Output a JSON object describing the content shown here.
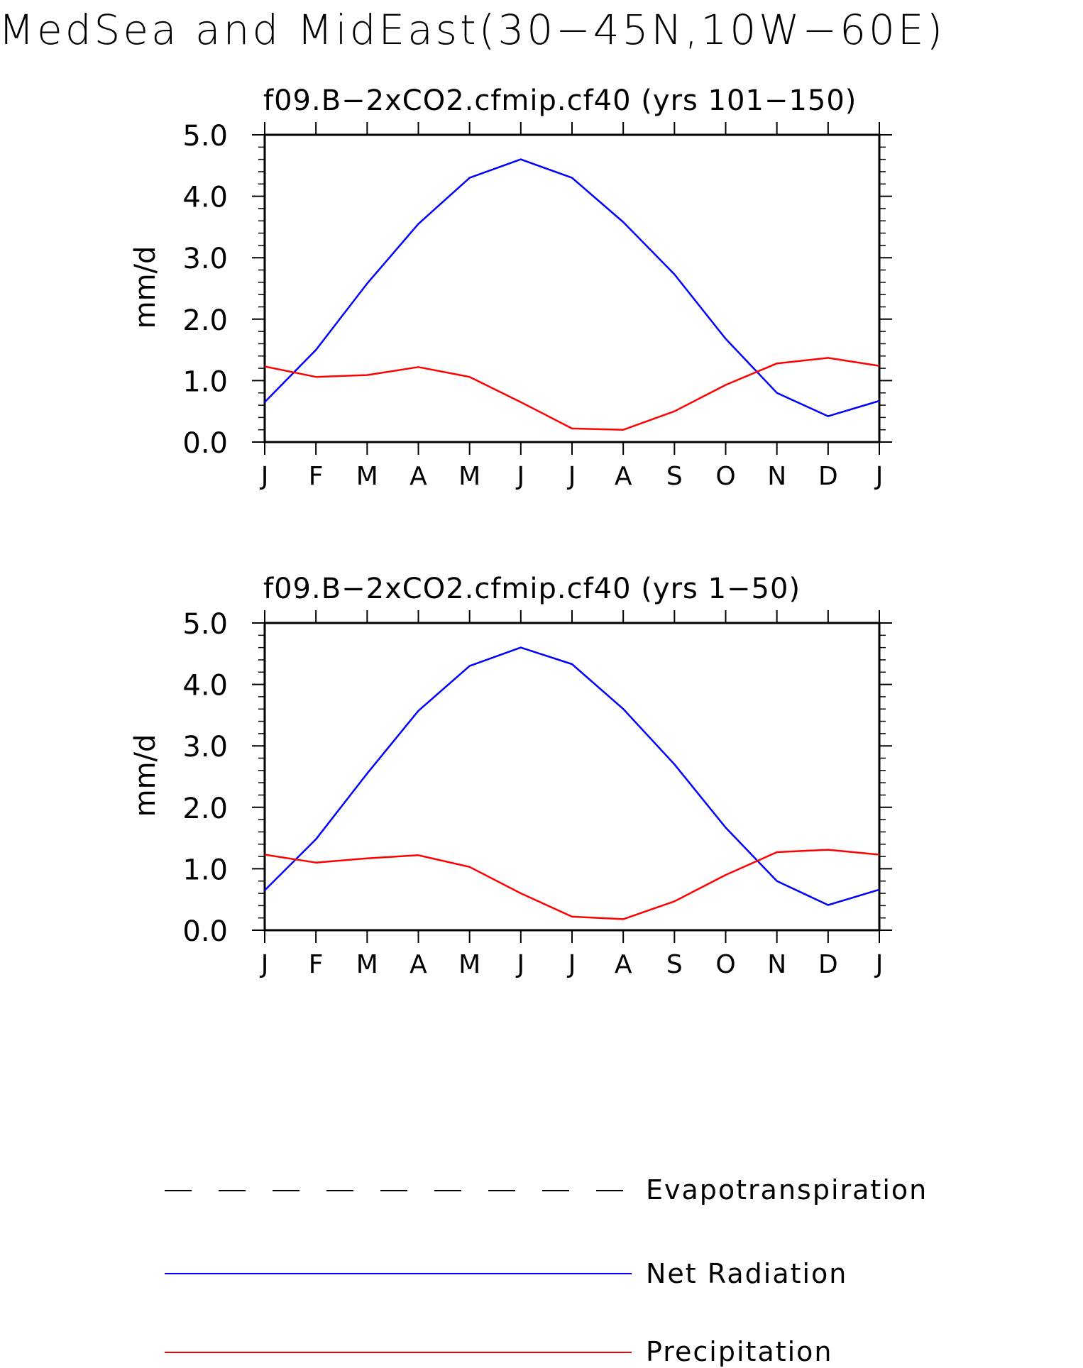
{
  "figure": {
    "title": "MedSea and MidEast(30−45N,10W−60E)"
  },
  "colors": {
    "net_radiation": "#0000ff",
    "precipitation": "#ff0000",
    "evapotranspiration": "#000000",
    "axes": "#000000",
    "background": "#ffffff"
  },
  "legend": {
    "position": "bottom",
    "items": [
      {
        "label": "Evapotranspiration",
        "style": "dashed",
        "color": "#000000"
      },
      {
        "label": "Net Radiation",
        "style": "solid",
        "color": "#0000ff"
      },
      {
        "label": "Precipitation",
        "style": "solid",
        "color": "#ff0000"
      }
    ]
  },
  "chart_data": [
    {
      "type": "line",
      "title": "f09.B−2xCO2.cfmip.cf40 (yrs 101−150)",
      "ylabel": "mm/d",
      "xlabel": "",
      "categories": [
        "J",
        "F",
        "M",
        "A",
        "M",
        "J",
        "J",
        "A",
        "S",
        "O",
        "N",
        "D",
        "J"
      ],
      "yticks": [
        "0.0",
        "1.0",
        "2.0",
        "3.0",
        "4.0",
        "5.0"
      ],
      "ylim": [
        0,
        5
      ],
      "grid": false,
      "series": [
        {
          "name": "Net Radiation",
          "color": "#0000ff",
          "values": [
            0.65,
            1.5,
            2.58,
            3.55,
            4.3,
            4.6,
            4.3,
            3.58,
            2.73,
            1.68,
            0.8,
            0.42,
            0.67
          ]
        },
        {
          "name": "Precipitation",
          "color": "#ff0000",
          "values": [
            1.23,
            1.06,
            1.09,
            1.22,
            1.06,
            0.65,
            0.22,
            0.2,
            0.5,
            0.93,
            1.28,
            1.37,
            1.24
          ]
        }
      ]
    },
    {
      "type": "line",
      "title": "f09.B−2xCO2.cfmip.cf40 (yrs 1−50)",
      "ylabel": "mm/d",
      "xlabel": "",
      "categories": [
        "J",
        "F",
        "M",
        "A",
        "M",
        "J",
        "J",
        "A",
        "S",
        "O",
        "N",
        "D",
        "J"
      ],
      "yticks": [
        "0.0",
        "1.0",
        "2.0",
        "3.0",
        "4.0",
        "5.0"
      ],
      "ylim": [
        0,
        5
      ],
      "grid": false,
      "series": [
        {
          "name": "Net Radiation",
          "color": "#0000ff",
          "values": [
            0.65,
            1.48,
            2.55,
            3.57,
            4.3,
            4.6,
            4.33,
            3.6,
            2.7,
            1.67,
            0.8,
            0.41,
            0.66
          ]
        },
        {
          "name": "Precipitation",
          "color": "#ff0000",
          "values": [
            1.23,
            1.1,
            1.17,
            1.22,
            1.03,
            0.6,
            0.22,
            0.18,
            0.47,
            0.9,
            1.27,
            1.31,
            1.23
          ]
        }
      ]
    }
  ]
}
